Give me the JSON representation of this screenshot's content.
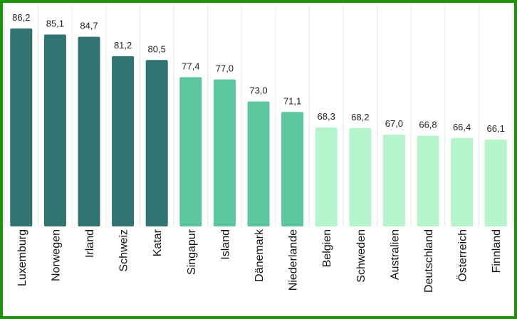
{
  "chart_data": {
    "type": "bar",
    "title": "",
    "xlabel": "",
    "ylabel": "",
    "ylim": [
      50.4,
      86.2
    ],
    "grid": "vertical",
    "categories": [
      "Luxemburg",
      "Norwegen",
      "Irland",
      "Schweiz",
      "Katar",
      "Singapur",
      "Island",
      "Dänemark",
      "Niederlande",
      "Belgien",
      "Schweden",
      "Australien",
      "Deutschland",
      "Österreich",
      "Finnland"
    ],
    "values": [
      86.2,
      85.1,
      84.7,
      81.2,
      80.5,
      77.4,
      77.0,
      73.0,
      71.1,
      68.3,
      68.2,
      67.0,
      66.8,
      66.4,
      66.1
    ],
    "value_labels": [
      "86,2",
      "85,1",
      "84,7",
      "81,2",
      "80,5",
      "77,4",
      "77,0",
      "73,0",
      "71,1",
      "68,3",
      "68,2",
      "67,0",
      "66,8",
      "66,4",
      "66,1"
    ],
    "bar_colors": [
      "#317370",
      "#317370",
      "#317370",
      "#317370",
      "#317370",
      "#5cc79e",
      "#5cc79e",
      "#5cc79e",
      "#5cc79e",
      "#b5f5cc",
      "#b5f5cc",
      "#b5f5cc",
      "#b5f5cc",
      "#b5f5cc",
      "#b5f5cc"
    ]
  }
}
